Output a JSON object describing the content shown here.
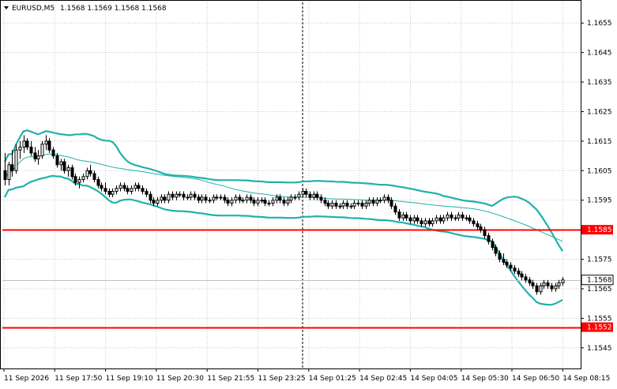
{
  "header": {
    "symbol": "EURUSD,M5",
    "ohlc": "1.1568 1.1569 1.1568 1.1568",
    "menu_icon": "triangle-down-icon"
  },
  "chart_data": {
    "type": "candlestick",
    "title": "",
    "xlabel": "",
    "ylabel": "",
    "ylim": [
      1.1538,
      1.1662
    ],
    "y_ticks": [
      "1.1655",
      "1.1645",
      "1.1635",
      "1.1625",
      "1.1615",
      "1.1605",
      "1.1595",
      "1.1585",
      "1.1575",
      "1.1565",
      "1.1555",
      "1.1545"
    ],
    "x_ticks": [
      "11 Sep 2026",
      "11 Sep 17:50",
      "11 Sep 19:10",
      "11 Sep 20:30",
      "11 Sep 21:55",
      "11 Sep 23:25",
      "14 Sep 01:25",
      "14 Sep 02:45",
      "14 Sep 04:05",
      "14 Sep 05:30",
      "14 Sep 06:50",
      "14 Sep 08:15"
    ],
    "grid": true,
    "horizontal_lines": [
      {
        "price": 1.1585,
        "label": "1.1585",
        "color": "#ff0000"
      },
      {
        "price": 1.1552,
        "label": "1.1552",
        "color": "#ff0000"
      }
    ],
    "current_price": {
      "price": 1.1568,
      "label": "1.1568",
      "color": "#c0c0c0"
    },
    "session_divider_index": 80,
    "colors": {
      "bull": "#ffffff",
      "bear": "#000000",
      "bollinger_bands": "#20b2aa",
      "moving_average": "#20b2aa",
      "grid": "#c8c8c8",
      "axis": "#000000"
    },
    "candles": [
      [
        1.1605,
        1.1611,
        1.16,
        1.1602
      ],
      [
        1.1602,
        1.1608,
        1.16,
        1.1607
      ],
      [
        1.1607,
        1.1612,
        1.1603,
        1.1605
      ],
      [
        1.1605,
        1.1614,
        1.1604,
        1.1612
      ],
      [
        1.1612,
        1.1615,
        1.1609,
        1.1613
      ],
      [
        1.1613,
        1.1617,
        1.1611,
        1.1615
      ],
      [
        1.1615,
        1.1616,
        1.1612,
        1.1613
      ],
      [
        1.1613,
        1.1615,
        1.161,
        1.1611
      ],
      [
        1.1611,
        1.1613,
        1.1608,
        1.1609
      ],
      [
        1.1609,
        1.1612,
        1.1607,
        1.161
      ],
      [
        1.161,
        1.1615,
        1.1609,
        1.1614
      ],
      [
        1.1614,
        1.1617,
        1.1612,
        1.1615
      ],
      [
        1.1615,
        1.1616,
        1.1611,
        1.1612
      ],
      [
        1.1612,
        1.1613,
        1.1609,
        1.161
      ],
      [
        1.161,
        1.1611,
        1.1606,
        1.1607
      ],
      [
        1.1607,
        1.1609,
        1.1605,
        1.1608
      ],
      [
        1.1608,
        1.1609,
        1.1604,
        1.1605
      ],
      [
        1.1605,
        1.1607,
        1.1603,
        1.1606
      ],
      [
        1.1606,
        1.1607,
        1.1602,
        1.1603
      ],
      [
        1.1603,
        1.1604,
        1.16,
        1.1601
      ],
      [
        1.1601,
        1.1603,
        1.1599,
        1.1602
      ],
      [
        1.1602,
        1.1604,
        1.1601,
        1.1603
      ],
      [
        1.1603,
        1.1606,
        1.1602,
        1.1605
      ],
      [
        1.1605,
        1.1607,
        1.1603,
        1.1604
      ],
      [
        1.1604,
        1.1605,
        1.1601,
        1.1602
      ],
      [
        1.1602,
        1.1603,
        1.1599,
        1.16
      ],
      [
        1.16,
        1.1601,
        1.1598,
        1.1599
      ],
      [
        1.1599,
        1.1601,
        1.1597,
        1.1598
      ],
      [
        1.1598,
        1.1599,
        1.1596,
        1.1597
      ],
      [
        1.1597,
        1.1599,
        1.1596,
        1.1598
      ],
      [
        1.1598,
        1.16,
        1.1597,
        1.1599
      ],
      [
        1.1599,
        1.1601,
        1.1598,
        1.16
      ],
      [
        1.16,
        1.1601,
        1.1598,
        1.1599
      ],
      [
        1.1599,
        1.16,
        1.1597,
        1.1598
      ],
      [
        1.1598,
        1.16,
        1.1597,
        1.1599
      ],
      [
        1.1599,
        1.1601,
        1.1598,
        1.16
      ],
      [
        1.16,
        1.1601,
        1.1598,
        1.1599
      ],
      [
        1.1599,
        1.16,
        1.1597,
        1.1598
      ],
      [
        1.1598,
        1.1599,
        1.1596,
        1.1597
      ],
      [
        1.1597,
        1.1598,
        1.1594,
        1.1595
      ],
      [
        1.1595,
        1.1596,
        1.1593,
        1.1594
      ],
      [
        1.1594,
        1.1596,
        1.1593,
        1.1595
      ],
      [
        1.1595,
        1.1597,
        1.1594,
        1.1596
      ],
      [
        1.1596,
        1.1597,
        1.1594,
        1.1595
      ],
      [
        1.1595,
        1.1598,
        1.1594,
        1.1597
      ],
      [
        1.1597,
        1.1598,
        1.1595,
        1.1596
      ],
      [
        1.1596,
        1.1598,
        1.1595,
        1.1597
      ],
      [
        1.1597,
        1.1598,
        1.1596,
        1.1597
      ],
      [
        1.1597,
        1.1598,
        1.1595,
        1.1596
      ],
      [
        1.1596,
        1.1597,
        1.1595,
        1.1596
      ],
      [
        1.1596,
        1.1598,
        1.1595,
        1.1597
      ],
      [
        1.1597,
        1.1598,
        1.1595,
        1.1596
      ],
      [
        1.1596,
        1.1597,
        1.1594,
        1.1595
      ],
      [
        1.1595,
        1.1597,
        1.1594,
        1.1596
      ],
      [
        1.1596,
        1.1597,
        1.1594,
        1.1595
      ],
      [
        1.1595,
        1.1596,
        1.1594,
        1.1595
      ],
      [
        1.1595,
        1.1597,
        1.1594,
        1.1596
      ],
      [
        1.1596,
        1.1597,
        1.1595,
        1.1596
      ],
      [
        1.1596,
        1.1597,
        1.1595,
        1.1596
      ],
      [
        1.1596,
        1.1597,
        1.1594,
        1.1595
      ],
      [
        1.1595,
        1.1596,
        1.1593,
        1.1594
      ],
      [
        1.1594,
        1.1596,
        1.1593,
        1.1595
      ],
      [
        1.1595,
        1.1597,
        1.1594,
        1.1596
      ],
      [
        1.1596,
        1.1597,
        1.1594,
        1.1595
      ],
      [
        1.1595,
        1.1596,
        1.1594,
        1.1595
      ],
      [
        1.1595,
        1.1597,
        1.1594,
        1.1596
      ],
      [
        1.1596,
        1.1597,
        1.1594,
        1.1595
      ],
      [
        1.1595,
        1.1596,
        1.1593,
        1.1594
      ],
      [
        1.1594,
        1.1596,
        1.1593,
        1.1595
      ],
      [
        1.1595,
        1.1596,
        1.1594,
        1.1595
      ],
      [
        1.1595,
        1.1596,
        1.1593,
        1.1594
      ],
      [
        1.1594,
        1.1595,
        1.1593,
        1.1594
      ],
      [
        1.1594,
        1.1596,
        1.1593,
        1.1595
      ],
      [
        1.1595,
        1.1597,
        1.1594,
        1.1596
      ],
      [
        1.1596,
        1.1597,
        1.1594,
        1.1595
      ],
      [
        1.1595,
        1.1596,
        1.1593,
        1.1594
      ],
      [
        1.1594,
        1.1596,
        1.1593,
        1.1595
      ],
      [
        1.1595,
        1.1597,
        1.1594,
        1.1596
      ],
      [
        1.1596,
        1.1597,
        1.1595,
        1.1596
      ],
      [
        1.1596,
        1.1598,
        1.1595,
        1.1597
      ],
      [
        1.1597,
        1.1599,
        1.1596,
        1.1598
      ],
      [
        1.1598,
        1.1599,
        1.1596,
        1.1597
      ],
      [
        1.1597,
        1.1598,
        1.1595,
        1.1596
      ],
      [
        1.1596,
        1.1598,
        1.1595,
        1.1597
      ],
      [
        1.1597,
        1.1598,
        1.1595,
        1.1596
      ],
      [
        1.1596,
        1.1597,
        1.1594,
        1.1595
      ],
      [
        1.1595,
        1.1596,
        1.1593,
        1.1594
      ],
      [
        1.1594,
        1.1595,
        1.1592,
        1.1593
      ],
      [
        1.1593,
        1.1595,
        1.1592,
        1.1594
      ],
      [
        1.1594,
        1.1595,
        1.1592,
        1.1593
      ],
      [
        1.1593,
        1.1594,
        1.1592,
        1.1593
      ],
      [
        1.1593,
        1.1595,
        1.1592,
        1.1594
      ],
      [
        1.1594,
        1.1595,
        1.1592,
        1.1593
      ],
      [
        1.1593,
        1.1594,
        1.1592,
        1.1593
      ],
      [
        1.1593,
        1.1595,
        1.1592,
        1.1594
      ],
      [
        1.1594,
        1.1595,
        1.1593,
        1.1594
      ],
      [
        1.1594,
        1.1595,
        1.1592,
        1.1593
      ],
      [
        1.1593,
        1.1595,
        1.1592,
        1.1594
      ],
      [
        1.1594,
        1.1596,
        1.1593,
        1.1595
      ],
      [
        1.1595,
        1.1596,
        1.1593,
        1.1594
      ],
      [
        1.1594,
        1.1596,
        1.1593,
        1.1595
      ],
      [
        1.1595,
        1.1596,
        1.1594,
        1.1595
      ],
      [
        1.1595,
        1.1597,
        1.1594,
        1.1596
      ],
      [
        1.1596,
        1.1597,
        1.1594,
        1.1595
      ],
      [
        1.1595,
        1.1596,
        1.1592,
        1.1593
      ],
      [
        1.1593,
        1.1594,
        1.159,
        1.1591
      ],
      [
        1.1591,
        1.1592,
        1.1588,
        1.1589
      ],
      [
        1.1589,
        1.1591,
        1.1588,
        1.159
      ],
      [
        1.159,
        1.1591,
        1.1588,
        1.1589
      ],
      [
        1.1589,
        1.159,
        1.1587,
        1.1588
      ],
      [
        1.1588,
        1.159,
        1.1587,
        1.1589
      ],
      [
        1.1589,
        1.159,
        1.1587,
        1.1588
      ],
      [
        1.1588,
        1.1589,
        1.1586,
        1.1587
      ],
      [
        1.1587,
        1.1589,
        1.1586,
        1.1588
      ],
      [
        1.1588,
        1.1589,
        1.1586,
        1.1587
      ],
      [
        1.1587,
        1.1589,
        1.1586,
        1.1588
      ],
      [
        1.1588,
        1.159,
        1.1587,
        1.1589
      ],
      [
        1.1589,
        1.159,
        1.1587,
        1.1588
      ],
      [
        1.1588,
        1.159,
        1.1587,
        1.1589
      ],
      [
        1.1589,
        1.1591,
        1.1588,
        1.159
      ],
      [
        1.159,
        1.1591,
        1.1588,
        1.1589
      ],
      [
        1.1589,
        1.159,
        1.1588,
        1.1589
      ],
      [
        1.1589,
        1.1591,
        1.1588,
        1.159
      ],
      [
        1.159,
        1.1591,
        1.1588,
        1.1589
      ],
      [
        1.1589,
        1.159,
        1.1588,
        1.1589
      ],
      [
        1.1589,
        1.159,
        1.1587,
        1.1588
      ],
      [
        1.1588,
        1.1589,
        1.1586,
        1.1587
      ],
      [
        1.1587,
        1.1588,
        1.1585,
        1.1586
      ],
      [
        1.1586,
        1.1587,
        1.1584,
        1.1585
      ],
      [
        1.1585,
        1.1586,
        1.1582,
        1.1583
      ],
      [
        1.1583,
        1.1584,
        1.158,
        1.1581
      ],
      [
        1.1581,
        1.1582,
        1.1578,
        1.1579
      ],
      [
        1.1579,
        1.158,
        1.1576,
        1.1577
      ],
      [
        1.1577,
        1.1578,
        1.1574,
        1.1575
      ],
      [
        1.1575,
        1.1577,
        1.1573,
        1.1574
      ],
      [
        1.1574,
        1.1575,
        1.1572,
        1.1573
      ],
      [
        1.1573,
        1.1574,
        1.1571,
        1.1572
      ],
      [
        1.1572,
        1.1573,
        1.157,
        1.1571
      ],
      [
        1.1571,
        1.1572,
        1.1569,
        1.157
      ],
      [
        1.157,
        1.1571,
        1.1568,
        1.1569
      ],
      [
        1.1569,
        1.157,
        1.1567,
        1.1568
      ],
      [
        1.1568,
        1.1569,
        1.1566,
        1.1567
      ],
      [
        1.1567,
        1.1568,
        1.1565,
        1.1566
      ],
      [
        1.1566,
        1.1567,
        1.1563,
        1.1564
      ],
      [
        1.1564,
        1.1567,
        1.1563,
        1.1566
      ],
      [
        1.1566,
        1.1568,
        1.1565,
        1.1567
      ],
      [
        1.1567,
        1.1568,
        1.1565,
        1.1566
      ],
      [
        1.1566,
        1.1567,
        1.1564,
        1.1565
      ],
      [
        1.1565,
        1.1567,
        1.1564,
        1.1566
      ],
      [
        1.1566,
        1.1568,
        1.1565,
        1.1567
      ],
      [
        1.1567,
        1.1569,
        1.1566,
        1.1568
      ]
    ]
  }
}
